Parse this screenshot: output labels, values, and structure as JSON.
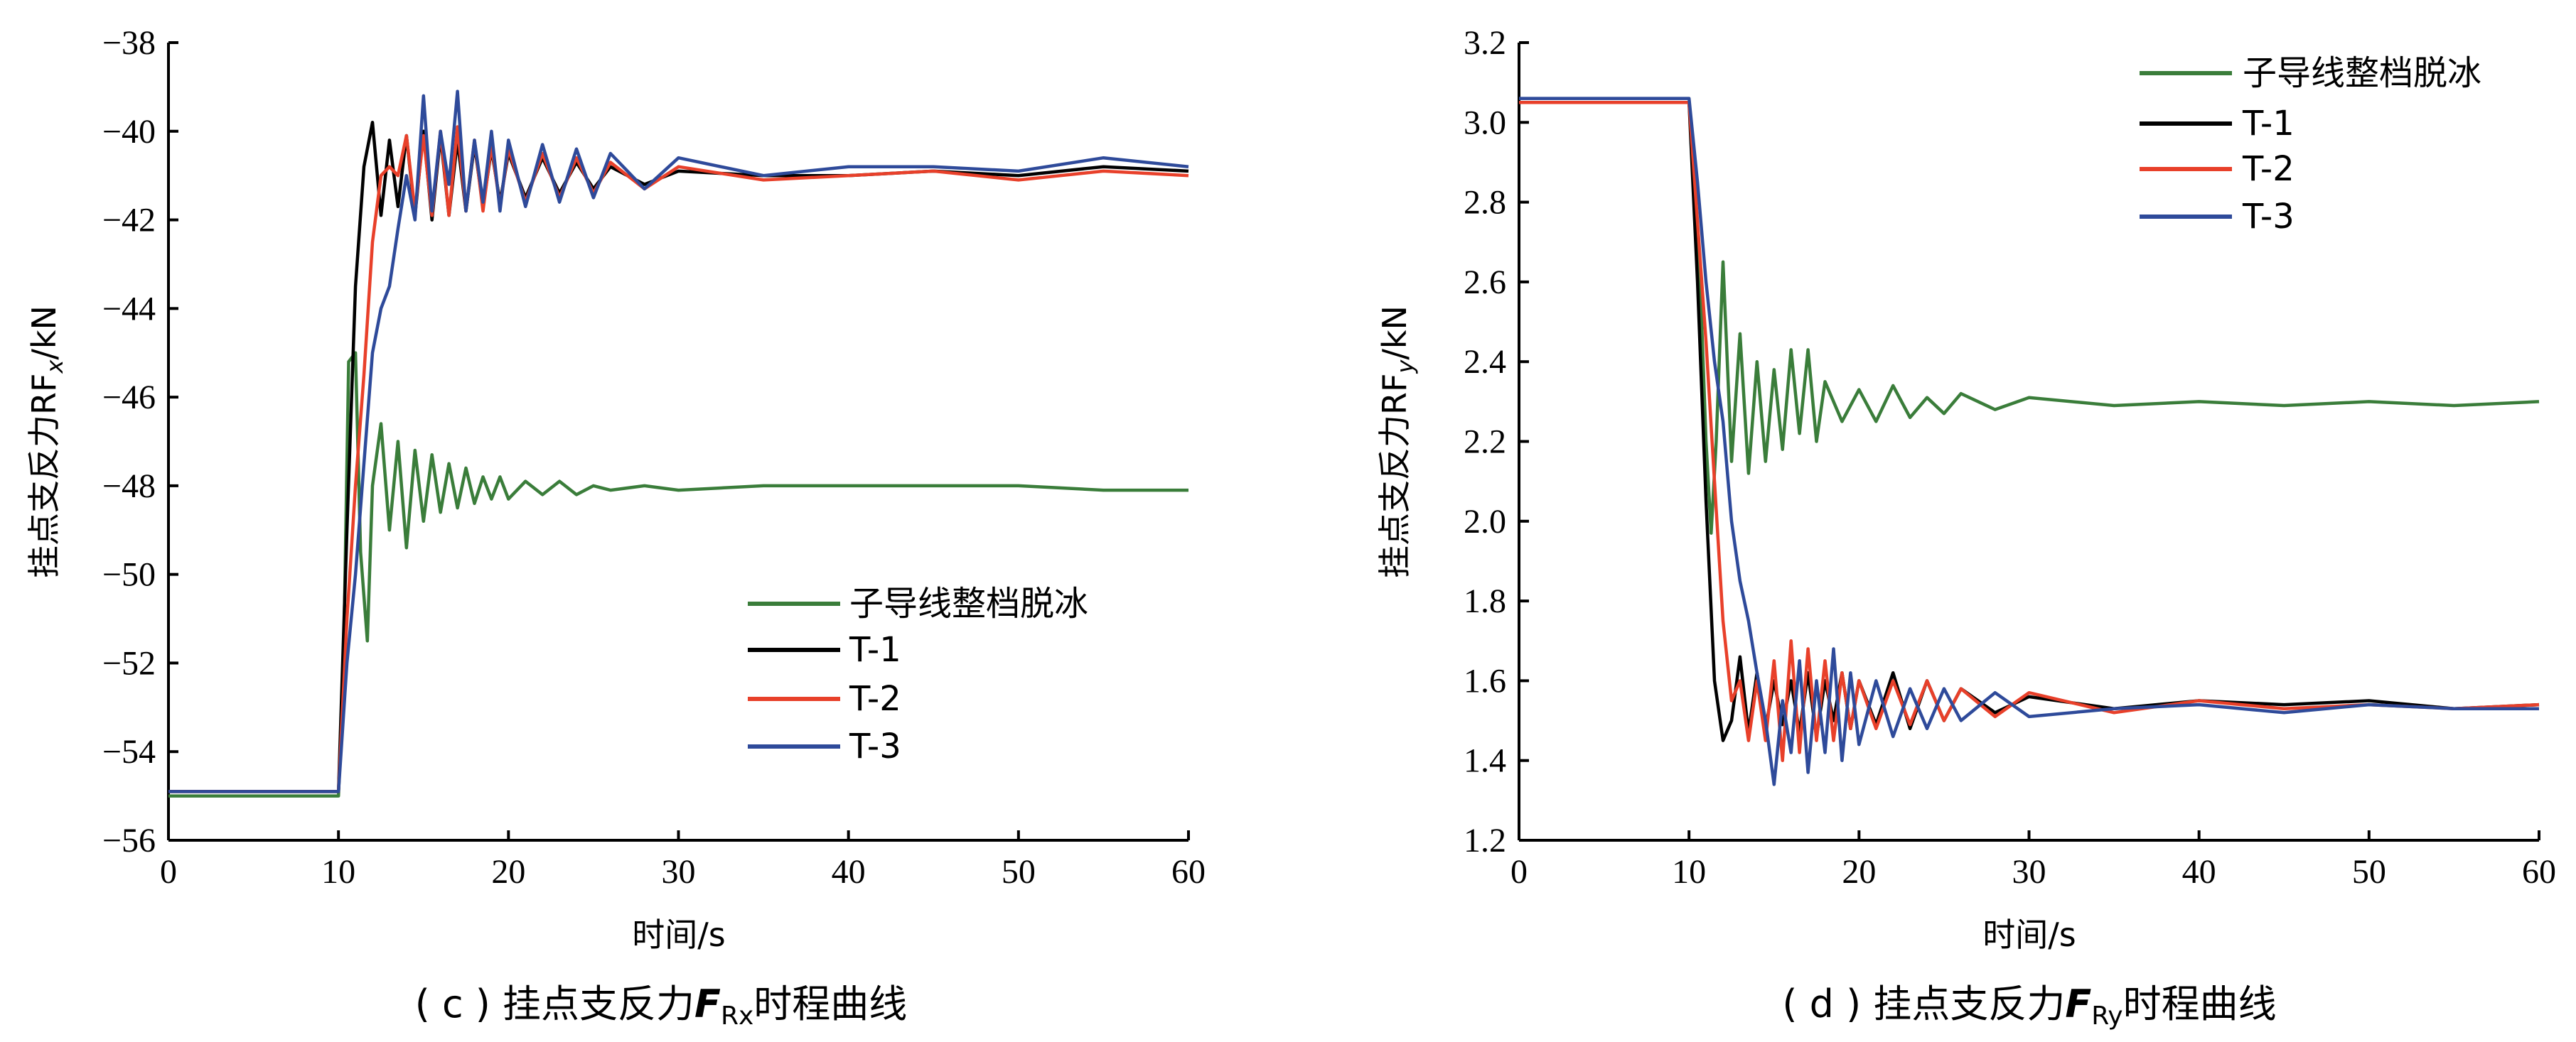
{
  "chart_data": [
    {
      "id": "c",
      "type": "line",
      "caption": "( c ) 挂点支反力F_Rx时程曲线",
      "caption_parts": {
        "prefix": "( c ) 挂点支反力",
        "symbol": "F",
        "subscript": "Rx",
        "suffix": "时程曲线"
      },
      "xlabel": "时间/s",
      "ylabel": "挂点支反力RF_x/kN",
      "ylabel_parts": {
        "prefix": "挂点支反力RF",
        "subscript": "x",
        "suffix": "/kN"
      },
      "xlim": [
        0,
        60
      ],
      "ylim": [
        -56,
        -38
      ],
      "xticks": [
        "0",
        "10",
        "20",
        "30",
        "40",
        "50",
        "60"
      ],
      "yticks": [
        "−38",
        "−40",
        "−42",
        "−44",
        "−46",
        "−48",
        "−50",
        "−52",
        "−54",
        "−56"
      ],
      "legend_position": "lower-right",
      "series": [
        {
          "name": "子导线整档脱冰",
          "color": "#3a7d3a",
          "x": [
            0,
            10,
            10.3,
            10.6,
            11,
            11.3,
            11.7,
            12,
            12.5,
            13,
            13.5,
            14,
            14.5,
            15,
            15.5,
            16,
            16.5,
            17,
            17.5,
            18,
            18.5,
            19,
            19.5,
            20,
            21,
            22,
            23,
            24,
            25,
            26,
            28,
            30,
            35,
            40,
            45,
            50,
            55,
            60
          ],
          "values": [
            -55,
            -55,
            -52,
            -45.2,
            -45,
            -49.5,
            -51.5,
            -48,
            -46.6,
            -49,
            -47,
            -49.4,
            -47.2,
            -48.8,
            -47.3,
            -48.6,
            -47.5,
            -48.5,
            -47.6,
            -48.4,
            -47.8,
            -48.3,
            -47.8,
            -48.3,
            -47.9,
            -48.2,
            -47.9,
            -48.2,
            -48.0,
            -48.1,
            -48.0,
            -48.1,
            -48.0,
            -48.0,
            -48.0,
            -48.0,
            -48.1,
            -48.1
          ]
        },
        {
          "name": "T-1",
          "color": "#000000",
          "x": [
            0,
            10,
            10.5,
            11,
            11.5,
            12,
            12.5,
            13,
            13.5,
            14,
            14.5,
            15,
            15.5,
            16,
            16.5,
            17,
            17.5,
            18,
            18.5,
            19,
            19.5,
            20,
            21,
            22,
            23,
            24,
            25,
            26,
            28,
            30,
            35,
            40,
            45,
            50,
            55,
            60
          ],
          "values": [
            -54.9,
            -54.9,
            -49,
            -43.5,
            -40.8,
            -39.8,
            -41.9,
            -40.2,
            -41.7,
            -40.1,
            -41.9,
            -40.0,
            -42.0,
            -40.1,
            -41.9,
            -40.2,
            -41.8,
            -40.3,
            -41.7,
            -40.4,
            -41.6,
            -40.5,
            -41.5,
            -40.6,
            -41.4,
            -40.7,
            -41.3,
            -40.8,
            -41.2,
            -40.9,
            -41.0,
            -41.0,
            -40.9,
            -41.0,
            -40.8,
            -40.9
          ]
        },
        {
          "name": "T-2",
          "color": "#e8402a",
          "x": [
            0,
            10,
            10.5,
            11,
            11.5,
            12,
            12.5,
            13,
            13.5,
            14,
            14.5,
            15,
            15.5,
            16,
            16.5,
            17,
            17.5,
            18,
            18.5,
            19,
            19.5,
            20,
            21,
            22,
            23,
            24,
            25,
            26,
            28,
            30,
            35,
            40,
            45,
            50,
            55,
            60
          ],
          "values": [
            -54.9,
            -54.9,
            -51,
            -48,
            -45.5,
            -42.5,
            -41,
            -40.8,
            -41.0,
            -40.1,
            -41.8,
            -40.1,
            -41.9,
            -40.0,
            -41.9,
            -39.9,
            -41.8,
            -40.2,
            -41.8,
            -40.3,
            -41.7,
            -40.4,
            -41.6,
            -40.5,
            -41.5,
            -40.6,
            -41.4,
            -40.7,
            -41.3,
            -40.8,
            -41.1,
            -41.0,
            -40.9,
            -41.1,
            -40.9,
            -41.0
          ]
        },
        {
          "name": "T-3",
          "color": "#2e4a9a",
          "x": [
            0,
            10,
            10.5,
            11,
            11.5,
            12,
            12.5,
            13,
            13.5,
            14,
            14.5,
            15,
            15.5,
            16,
            16.5,
            17,
            17.5,
            18,
            18.5,
            19,
            19.5,
            20,
            21,
            22,
            23,
            24,
            25,
            26,
            28,
            30,
            35,
            40,
            45,
            50,
            55,
            60
          ],
          "values": [
            -54.9,
            -54.9,
            -52,
            -50,
            -47.5,
            -45,
            -44,
            -43.5,
            -42.2,
            -41.0,
            -42.0,
            -39.2,
            -41.8,
            -40.0,
            -41.2,
            -39.1,
            -41.8,
            -40.2,
            -41.6,
            -40.0,
            -41.8,
            -40.2,
            -41.7,
            -40.3,
            -41.6,
            -40.4,
            -41.5,
            -40.5,
            -41.3,
            -40.6,
            -41.0,
            -40.8,
            -40.8,
            -40.9,
            -40.6,
            -40.8
          ]
        }
      ]
    },
    {
      "id": "d",
      "type": "line",
      "caption": "( d ) 挂点支反力F_Ry时程曲线",
      "caption_parts": {
        "prefix": "( d ) 挂点支反力",
        "symbol": "F",
        "subscript": "Ry",
        "suffix": "时程曲线"
      },
      "xlabel": "时间/s",
      "ylabel": "挂点支反力RF_y/kN",
      "ylabel_parts": {
        "prefix": "挂点支反力RF",
        "subscript": "y",
        "suffix": "/kN"
      },
      "xlim": [
        0,
        60
      ],
      "ylim": [
        1.2,
        3.2
      ],
      "xticks": [
        "0",
        "10",
        "20",
        "30",
        "40",
        "50",
        "60"
      ],
      "yticks": [
        "3.2",
        "3.0",
        "2.8",
        "2.6",
        "2.4",
        "2.2",
        "2.0",
        "1.8",
        "1.6",
        "1.4",
        "1.2"
      ],
      "legend_position": "top-right",
      "series": [
        {
          "name": "子导线整档脱冰",
          "color": "#3a7d3a",
          "x": [
            0,
            10,
            10.3,
            10.7,
            11,
            11.3,
            11.6,
            12,
            12.5,
            13,
            13.5,
            14,
            14.5,
            15,
            15.5,
            16,
            16.5,
            17,
            17.5,
            18,
            19,
            20,
            21,
            22,
            23,
            24,
            25,
            26,
            28,
            30,
            35,
            40,
            45,
            50,
            55,
            60
          ],
          "values": [
            3.05,
            3.05,
            2.9,
            2.55,
            2.2,
            1.97,
            2.2,
            2.65,
            2.15,
            2.47,
            2.12,
            2.4,
            2.15,
            2.38,
            2.18,
            2.43,
            2.22,
            2.43,
            2.2,
            2.35,
            2.25,
            2.33,
            2.25,
            2.34,
            2.26,
            2.31,
            2.27,
            2.32,
            2.28,
            2.31,
            2.29,
            2.3,
            2.29,
            2.3,
            2.29,
            2.3
          ]
        },
        {
          "name": "T-1",
          "color": "#000000",
          "x": [
            0,
            10,
            10.5,
            11,
            11.5,
            12,
            12.5,
            13,
            13.5,
            14,
            14.5,
            15,
            15.5,
            16,
            16.5,
            17,
            17.5,
            18,
            18.5,
            19,
            19.5,
            20,
            21,
            22,
            23,
            24,
            25,
            26,
            28,
            30,
            35,
            40,
            45,
            50,
            55,
            60
          ],
          "values": [
            3.05,
            3.05,
            2.6,
            2.05,
            1.6,
            1.45,
            1.5,
            1.66,
            1.47,
            1.62,
            1.48,
            1.6,
            1.49,
            1.6,
            1.47,
            1.62,
            1.46,
            1.6,
            1.5,
            1.62,
            1.48,
            1.6,
            1.49,
            1.62,
            1.48,
            1.6,
            1.5,
            1.58,
            1.52,
            1.56,
            1.53,
            1.55,
            1.54,
            1.55,
            1.53,
            1.54
          ]
        },
        {
          "name": "T-2",
          "color": "#e8402a",
          "x": [
            0,
            10,
            10.5,
            11,
            11.5,
            12,
            12.5,
            13,
            13.5,
            14,
            14.5,
            15,
            15.5,
            16,
            16.5,
            17,
            17.5,
            18,
            18.5,
            19,
            19.5,
            20,
            21,
            22,
            23,
            24,
            25,
            26,
            28,
            30,
            35,
            40,
            45,
            50,
            55,
            60
          ],
          "values": [
            3.05,
            3.05,
            2.75,
            2.45,
            2.1,
            1.75,
            1.55,
            1.6,
            1.45,
            1.6,
            1.45,
            1.65,
            1.4,
            1.7,
            1.42,
            1.68,
            1.45,
            1.65,
            1.45,
            1.62,
            1.48,
            1.6,
            1.48,
            1.6,
            1.49,
            1.6,
            1.5,
            1.58,
            1.51,
            1.57,
            1.52,
            1.55,
            1.53,
            1.54,
            1.53,
            1.54
          ]
        },
        {
          "name": "T-3",
          "color": "#2e4a9a",
          "x": [
            0,
            10,
            10.5,
            11,
            11.5,
            12,
            12.5,
            13,
            13.5,
            14,
            14.5,
            15,
            15.5,
            16,
            16.5,
            17,
            17.5,
            18,
            18.5,
            19,
            19.5,
            20,
            21,
            22,
            23,
            24,
            25,
            26,
            28,
            30,
            35,
            40,
            45,
            50,
            55,
            60
          ],
          "values": [
            3.06,
            3.06,
            2.85,
            2.6,
            2.4,
            2.25,
            2.0,
            1.85,
            1.75,
            1.62,
            1.5,
            1.34,
            1.55,
            1.42,
            1.65,
            1.37,
            1.6,
            1.42,
            1.68,
            1.4,
            1.62,
            1.44,
            1.6,
            1.46,
            1.58,
            1.48,
            1.58,
            1.5,
            1.57,
            1.51,
            1.53,
            1.54,
            1.52,
            1.54,
            1.53,
            1.53
          ]
        }
      ]
    }
  ]
}
